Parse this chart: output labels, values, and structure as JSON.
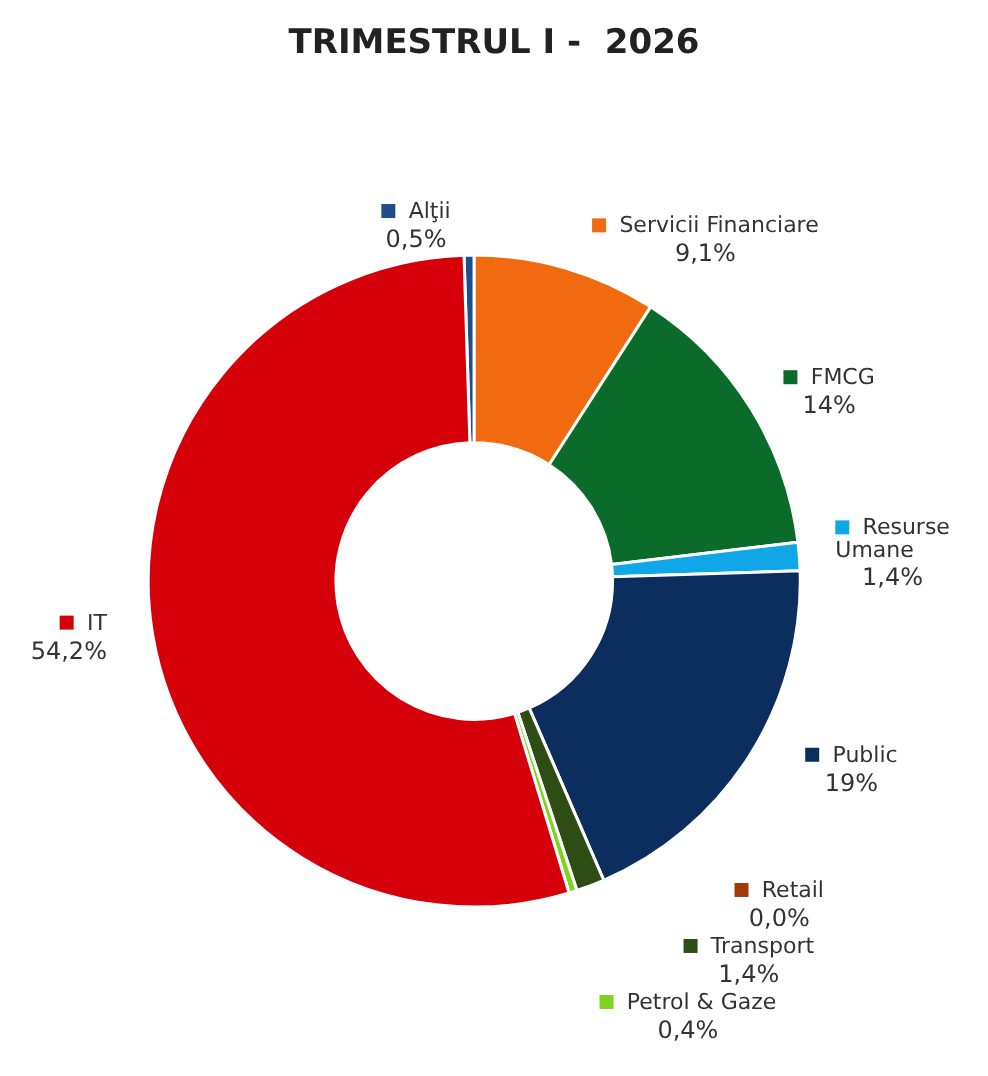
{
  "chart_data": {
    "type": "donut",
    "title": "TRIMESTRUL I -  2026",
    "categories": [
      "Alţii",
      "Servicii Financiare",
      "FMCG",
      "Resurse Umane",
      "Public",
      "Retail",
      "Transport",
      "Petrol & Gaze",
      "IT"
    ],
    "values": [
      0.5,
      9.1,
      14,
      1.4,
      19,
      0.0,
      1.4,
      0.4,
      54.2
    ],
    "value_labels": [
      "0,5%",
      "9,1%",
      "14%",
      "1,4%",
      "19%",
      "0,0%",
      "1,4%",
      "0,4%",
      "54,2%"
    ],
    "colors": [
      "#1f4e8c",
      "#f26a10",
      "#0a6b2a",
      "#10a7e8",
      "#0b2e5e",
      "#a33a0c",
      "#2e4d14",
      "#7ed321",
      "#d6000b"
    ],
    "legend": "right"
  }
}
